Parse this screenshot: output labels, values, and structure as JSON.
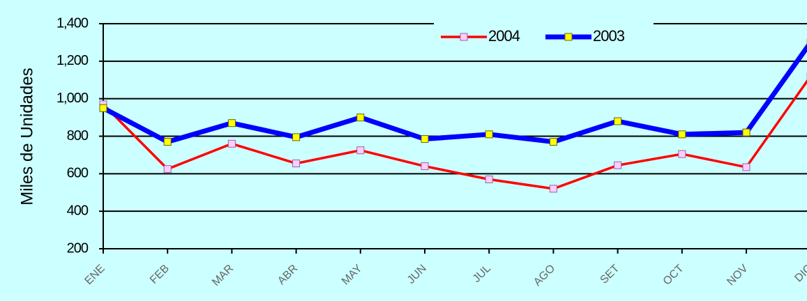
{
  "chart_data": {
    "type": "line",
    "y_axis_label": "Miles de Unidades",
    "categories": [
      "ENE",
      "FEB",
      "MAR",
      "ABR",
      "MAY",
      "JUN",
      "JUL",
      "AGO",
      "SET",
      "OCT",
      "NOV",
      "DIC"
    ],
    "series": [
      {
        "name": "2004",
        "color": "#ff0000",
        "values": [
          970,
          625,
          760,
          655,
          725,
          640,
          570,
          520,
          645,
          705,
          635,
          1120
        ]
      },
      {
        "name": "2003",
        "color": "#0000ff",
        "values": [
          950,
          770,
          870,
          795,
          900,
          785,
          810,
          770,
          880,
          810,
          820,
          1300
        ]
      }
    ],
    "ylim": [
      200,
      1400
    ],
    "yticks": [
      200,
      400,
      600,
      800,
      {
        "value": 1000,
        "label": "1,000"
      },
      {
        "value": 1200,
        "label": "1,200"
      },
      {
        "value": 1400,
        "label": "1,400"
      }
    ],
    "grid": true,
    "legend": "top"
  }
}
